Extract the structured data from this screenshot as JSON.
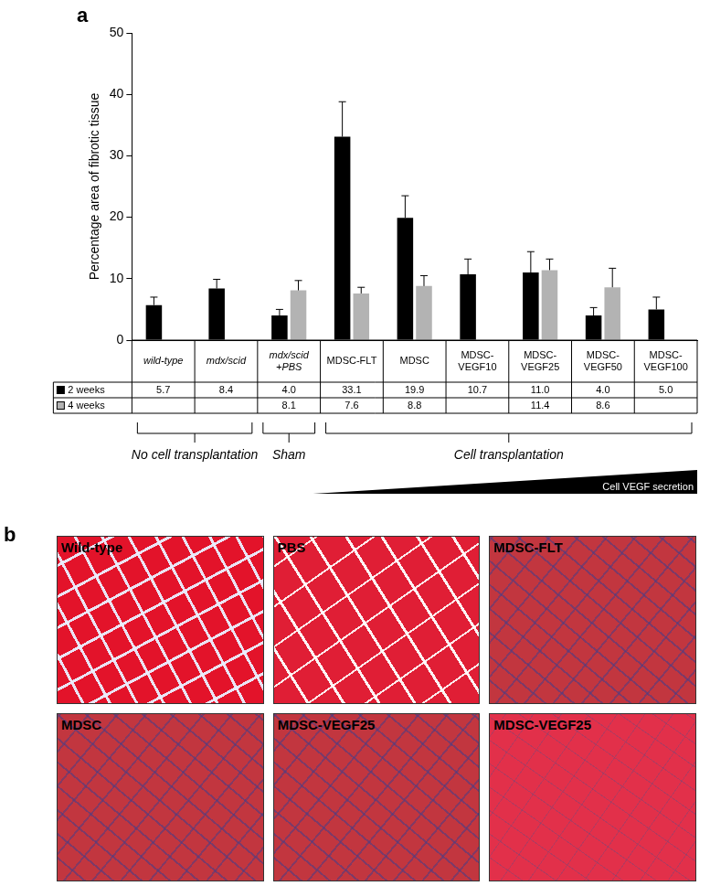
{
  "chart_data": {
    "type": "bar",
    "panel_label": "a",
    "y_label": "Percentage area of fibrotic tissue",
    "categories": [
      "wild-type",
      "mdx/scid",
      "mdx/scid +PBS",
      "MDSC-FLT",
      "MDSC",
      "MDSC-VEGF10",
      "MDSC-VEGF25",
      "MDSC-VEGF50",
      "MDSC-VEGF100"
    ],
    "series": [
      {
        "name": "2 weeks",
        "color": "#000000",
        "values": [
          5.7,
          8.4,
          4.0,
          33.1,
          19.9,
          10.7,
          11.0,
          4.0,
          5.0
        ],
        "value_labels": [
          "5.7",
          "8.4",
          "4.0",
          "33.1",
          "19.9",
          "10.7",
          "11.0",
          "4.0",
          "5.0"
        ],
        "errors": [
          1.3,
          1.5,
          1.0,
          5.7,
          3.6,
          2.5,
          3.4,
          1.3,
          2.0
        ]
      },
      {
        "name": "4 weeks",
        "color": "#b3b3b3",
        "values": [
          null,
          null,
          8.1,
          7.6,
          8.8,
          null,
          11.4,
          8.6,
          null
        ],
        "value_labels": [
          null,
          null,
          "8.1",
          "7.6",
          "8.8",
          null,
          "11.4",
          "8.6",
          null
        ],
        "errors": [
          null,
          null,
          1.6,
          1.0,
          1.7,
          null,
          1.8,
          3.1,
          null
        ]
      }
    ],
    "ylim": [
      0,
      50
    ],
    "yticks": [
      0,
      10,
      20,
      30,
      40,
      50
    ],
    "grid": false,
    "data_labels": true,
    "legend": "bottom",
    "groups": [
      {
        "label": "No cell transplantation",
        "categories": [
          "wild-type",
          "mdx/scid"
        ]
      },
      {
        "label": "Sham",
        "categories": [
          "mdx/scid +PBS"
        ]
      },
      {
        "label": "Cell transplantation",
        "categories": [
          "MDSC-FLT",
          "MDSC",
          "MDSC-VEGF10",
          "MDSC-VEGF25",
          "MDSC-VEGF50",
          "MDSC-VEGF100"
        ]
      }
    ],
    "gradient": {
      "label": "Cell VEGF secretion",
      "categories": [
        "MDSC-FLT",
        "MDSC",
        "MDSC-VEGF10",
        "MDSC-VEGF25",
        "MDSC-VEGF50",
        "MDSC-VEGF100"
      ]
    }
  },
  "panel_b": {
    "label": "b",
    "images": [
      "Wild-type",
      "PBS",
      "MDSC-FLT",
      "MDSC",
      "MDSC-VEGF25",
      "MDSC-VEGF25"
    ]
  }
}
